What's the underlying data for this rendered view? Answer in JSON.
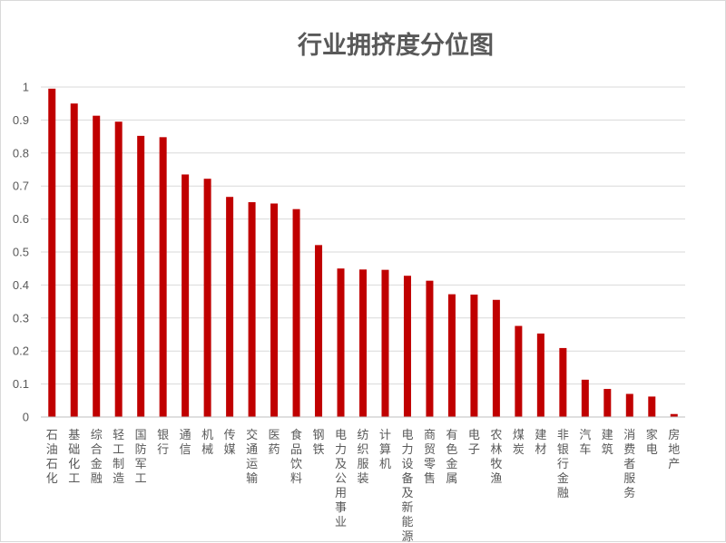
{
  "chart_data": {
    "type": "bar",
    "title": "行业拥挤度分位图",
    "xlabel": "",
    "ylabel": "",
    "ylim": [
      0,
      1
    ],
    "yticks": [
      "0",
      "0.1",
      "0.2",
      "0.3",
      "0.4",
      "0.5",
      "0.6",
      "0.7",
      "0.8",
      "0.9",
      "1"
    ],
    "grid": true,
    "bar_color": "#c00000",
    "categories": [
      "石油石化",
      "基础化工",
      "综合金融",
      "轻工制造",
      "国防军工",
      "银行",
      "通信",
      "机械",
      "传媒",
      "交通运输",
      "医药",
      "食品饮料",
      "钢铁",
      "电力及公用事业",
      "纺织服装",
      "计算机",
      "电力设备及新能源",
      "商贸零售",
      "有色金属",
      "电子",
      "农林牧渔",
      "煤炭",
      "建材",
      "非银行金融",
      "汽车",
      "建筑",
      "消费者服务",
      "家电",
      "房地产"
    ],
    "values": [
      0.995,
      0.95,
      0.913,
      0.895,
      0.852,
      0.848,
      0.735,
      0.722,
      0.667,
      0.651,
      0.647,
      0.63,
      0.521,
      0.45,
      0.447,
      0.446,
      0.428,
      0.413,
      0.372,
      0.371,
      0.355,
      0.276,
      0.253,
      0.209,
      0.113,
      0.085,
      0.07,
      0.062,
      0.009
    ]
  }
}
